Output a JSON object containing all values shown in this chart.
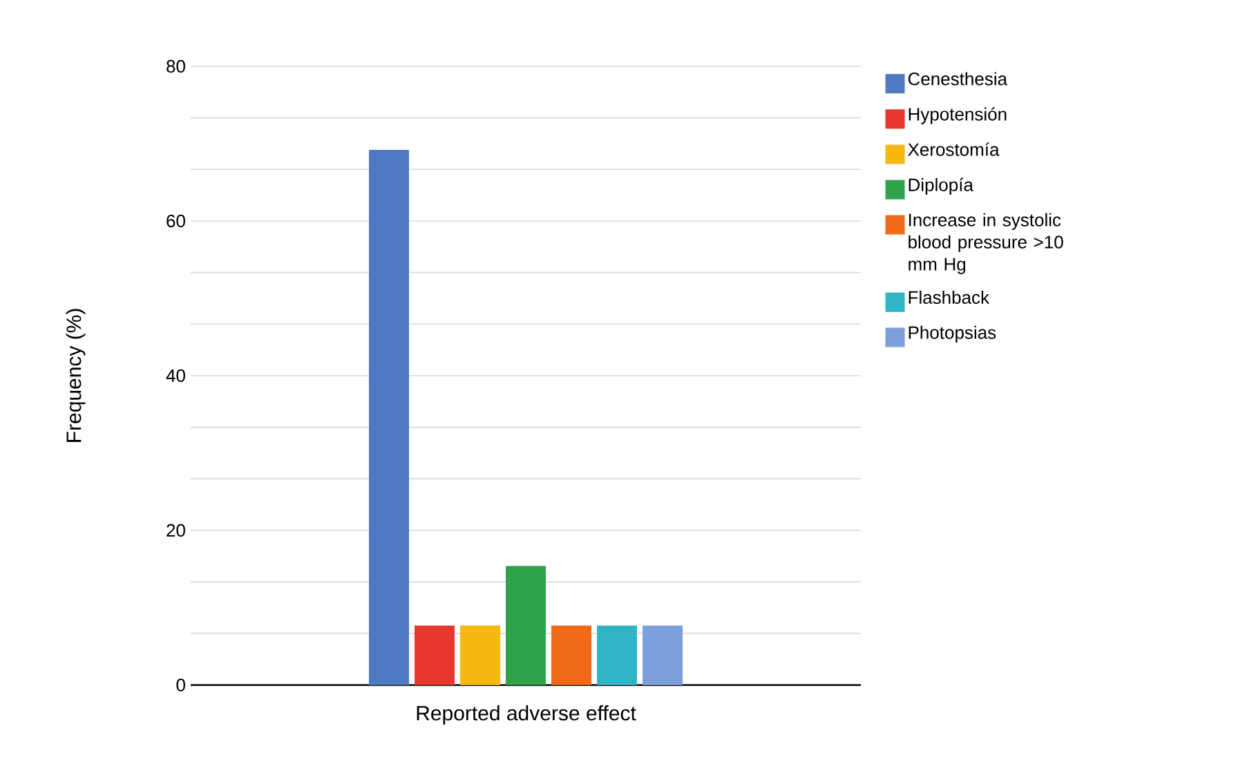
{
  "chart_data": {
    "type": "bar",
    "xlabel": "Reported adverse effect",
    "ylabel": "Frequency (%)",
    "categories": [
      null
    ],
    "series": [
      {
        "name": "Cenesthesia",
        "color": "#4e7ac4",
        "values": [
          69.2
        ]
      },
      {
        "name": "Hypotensión",
        "color": "#e8372f",
        "values": [
          7.7
        ]
      },
      {
        "name": "Xerostomía",
        "color": "#f5b912",
        "values": [
          7.7
        ]
      },
      {
        "name": "Diplopía",
        "color": "#2ea34b",
        "values": [
          15.4
        ]
      },
      {
        "name": "Increase in systolic blood pressure >10 mm Hg",
        "color": "#f06a1a",
        "values": [
          7.7
        ]
      },
      {
        "name": "Flashback",
        "color": "#2fb5c6",
        "values": [
          7.7
        ]
      },
      {
        "name": "Photopsias",
        "color": "#7b9fd8",
        "values": [
          7.7
        ]
      }
    ],
    "ylim": [
      0,
      80
    ],
    "yticks": [
      0,
      {
        "value": 6.667,
        "label": null
      },
      {
        "value": 13.333,
        "label": null
      },
      20,
      {
        "value": 26.667,
        "label": null
      },
      {
        "value": 33.333,
        "label": null
      },
      40,
      {
        "value": 46.667,
        "label": null
      },
      {
        "value": 53.333,
        "label": null
      },
      60,
      {
        "value": 66.667,
        "label": null
      },
      {
        "value": 73.333,
        "label": null
      },
      80
    ],
    "grid": "y",
    "legend": "top right"
  }
}
